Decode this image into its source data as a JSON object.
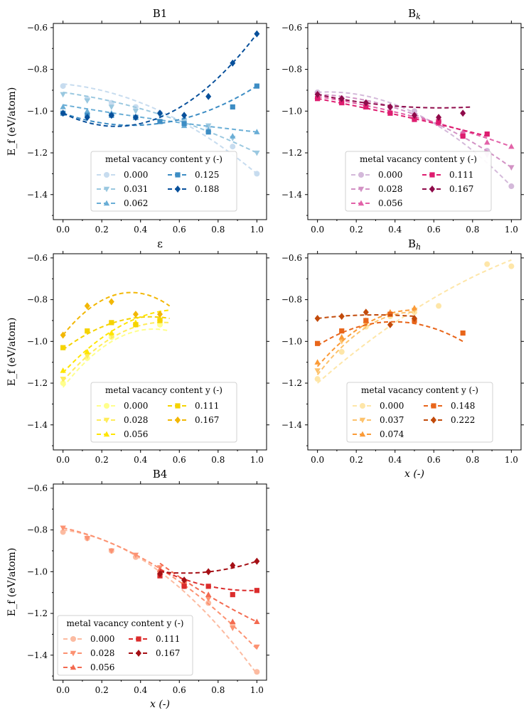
{
  "figure": {
    "ylabel": "E_f (eV/atom)",
    "xlabel": "x (-)",
    "legend_title": "metal vacancy content y (-)"
  },
  "chart_data": [
    {
      "id": "B1",
      "type": "scatter",
      "title": "B1",
      "title_base": "B",
      "title_sub": "",
      "title_plain": "B1",
      "xlim": [
        -0.05,
        1.05
      ],
      "ylim": [
        -1.52,
        -0.58
      ],
      "xticks": [
        0.0,
        0.2,
        0.4,
        0.6,
        0.8,
        1.0
      ],
      "yticks": [
        -0.6,
        -0.8,
        -1.0,
        -1.2,
        -1.4
      ],
      "xtick_labels": [
        "0.0",
        "0.2",
        "0.4",
        "0.6",
        "0.8",
        "1.0"
      ],
      "ytick_labels": [
        "−0.6",
        "−0.8",
        "−1.0",
        "−1.2",
        "−1.4"
      ],
      "show_ylabel": true,
      "show_xlabel": false,
      "legend": {
        "title": "metal vacancy content y (-)",
        "location": "lower-center"
      },
      "series": [
        {
          "name": "0.000",
          "color": "#c7dcef",
          "marker": "circle",
          "x": [
            0.0,
            0.125,
            0.25,
            0.375,
            0.5,
            0.625,
            0.75,
            0.875,
            1.0
          ],
          "y": [
            -0.88,
            -0.94,
            -0.96,
            -0.98,
            -1.01,
            -1.04,
            -1.08,
            -1.17,
            -1.3
          ],
          "fit": [
            -0.87,
            -1.3
          ]
        },
        {
          "name": "0.031",
          "color": "#9ac8e0",
          "marker": "triangle-down",
          "x": [
            0.0,
            0.125,
            0.25,
            0.375,
            0.5,
            0.625,
            0.75,
            0.875,
            1.0
          ],
          "y": [
            -0.92,
            -0.95,
            -0.98,
            -1.0,
            -1.02,
            -1.05,
            -1.07,
            -1.13,
            -1.2
          ],
          "fit": [
            -0.91,
            -1.2
          ]
        },
        {
          "name": "0.062",
          "color": "#6aaed6",
          "marker": "triangle-up",
          "x": [
            0.0,
            0.125,
            0.25,
            0.375,
            0.5,
            0.625,
            0.75,
            0.875,
            1.0
          ],
          "y": [
            -0.98,
            -1.0,
            -1.01,
            -1.03,
            -1.05,
            -1.07,
            -1.09,
            -1.12,
            -1.1
          ],
          "fit": [
            -0.97,
            -1.1
          ]
        },
        {
          "name": "0.125",
          "color": "#3d8dc4",
          "marker": "square",
          "x": [
            0.0,
            0.125,
            0.25,
            0.375,
            0.5,
            0.625,
            0.75,
            0.875,
            1.0
          ],
          "y": [
            -1.01,
            -1.02,
            -1.02,
            -1.03,
            -1.05,
            -1.06,
            -1.1,
            -0.98,
            -0.88
          ],
          "fit": [
            -1.01,
            -0.88
          ]
        },
        {
          "name": "0.188",
          "color": "#08509b",
          "marker": "diamond",
          "x": [
            0.0,
            0.125,
            0.25,
            0.375,
            0.5,
            0.625,
            0.75,
            0.875,
            1.0
          ],
          "y": [
            -1.01,
            -1.03,
            -1.02,
            -1.03,
            -1.01,
            -1.02,
            -0.93,
            -0.77,
            -0.63
          ],
          "fit": [
            -1.01,
            -0.63
          ]
        }
      ]
    },
    {
      "id": "Bk",
      "type": "scatter",
      "title": "B_k",
      "title_base": "B",
      "title_sub": "k",
      "title_plain": "",
      "xlim": [
        -0.05,
        1.05
      ],
      "ylim": [
        -1.52,
        -0.58
      ],
      "xticks": [
        0.0,
        0.2,
        0.4,
        0.6,
        0.8,
        1.0
      ],
      "yticks": [
        -0.6,
        -0.8,
        -1.0,
        -1.2,
        -1.4
      ],
      "xtick_labels": [
        "0.0",
        "0.2",
        "0.4",
        "0.6",
        "0.8",
        "1.0"
      ],
      "ytick_labels": [
        "−0.6",
        "−0.8",
        "−1.0",
        "−1.2",
        "−1.4"
      ],
      "show_ylabel": false,
      "show_xlabel": false,
      "legend": {
        "title": "metal vacancy content y (-)",
        "location": "lower-center"
      },
      "series": [
        {
          "name": "0.000",
          "color": "#d4b9da",
          "marker": "circle",
          "x": [
            0.0,
            0.125,
            0.25,
            0.375,
            0.5,
            0.625,
            0.75,
            0.875,
            1.0
          ],
          "y": [
            -0.91,
            -0.94,
            -0.96,
            -0.98,
            -1.0,
            -1.05,
            -1.12,
            -1.19,
            -1.36
          ],
          "fit": [
            -0.91,
            -1.36
          ]
        },
        {
          "name": "0.028",
          "color": "#d291c4",
          "marker": "triangle-down",
          "x": [
            0.0,
            0.125,
            0.25,
            0.375,
            0.5,
            0.625,
            0.75,
            0.875,
            1.0
          ],
          "y": [
            -0.92,
            -0.95,
            -0.97,
            -0.99,
            -1.02,
            -1.06,
            -1.11,
            -1.21,
            -1.27
          ],
          "fit": [
            -0.92,
            -1.27
          ]
        },
        {
          "name": "0.056",
          "color": "#e262a8",
          "marker": "triangle-up",
          "x": [
            0.0,
            0.125,
            0.25,
            0.375,
            0.5,
            0.625,
            0.75,
            0.875,
            1.0
          ],
          "y": [
            -0.93,
            -0.96,
            -0.98,
            -1.0,
            -1.03,
            -1.06,
            -1.1,
            -1.15,
            -1.17
          ],
          "fit": [
            -0.93,
            -1.17
          ]
        },
        {
          "name": "0.111",
          "color": "#de1c6f",
          "marker": "square",
          "x": [
            0.0,
            0.125,
            0.25,
            0.375,
            0.5,
            0.625,
            0.75,
            0.875
          ],
          "y": [
            -0.94,
            -0.96,
            -0.98,
            -1.01,
            -1.04,
            -1.05,
            -1.12,
            -1.11
          ],
          "fit": [
            -0.94,
            -1.12
          ]
        },
        {
          "name": "0.167",
          "color": "#8f0a4a",
          "marker": "diamond",
          "x": [
            0.0,
            0.125,
            0.25,
            0.375,
            0.5,
            0.625,
            0.75
          ],
          "y": [
            -0.92,
            -0.94,
            -0.96,
            -0.98,
            -1.02,
            -1.03,
            -1.01
          ],
          "fit": [
            -0.92,
            -0.98
          ]
        }
      ]
    },
    {
      "id": "eps",
      "type": "scatter",
      "title": "ε",
      "title_base": "ε",
      "title_sub": "",
      "title_plain": "ε",
      "xlim": [
        -0.05,
        1.05
      ],
      "ylim": [
        -1.52,
        -0.58
      ],
      "xticks": [
        0.0,
        0.2,
        0.4,
        0.6,
        0.8,
        1.0
      ],
      "yticks": [
        -0.6,
        -0.8,
        -1.0,
        -1.2,
        -1.4
      ],
      "xtick_labels": [
        "0.0",
        "0.2",
        "0.4",
        "0.6",
        "0.8",
        "1.0"
      ],
      "ytick_labels": [
        "−0.6",
        "−0.8",
        "−1.0",
        "−1.2",
        "−1.4"
      ],
      "show_ylabel": true,
      "show_xlabel": false,
      "legend": {
        "title": "metal vacancy content y (-)",
        "location": "lower-center"
      },
      "series": [
        {
          "name": "0.000",
          "color": "#ffff8c",
          "marker": "circle",
          "x": [
            0.0,
            0.125,
            0.25,
            0.375,
            0.5
          ],
          "y": [
            -1.2,
            -1.08,
            -0.98,
            -0.92,
            -0.92
          ],
          "fit": [
            -1.22,
            -0.95
          ]
        },
        {
          "name": "0.028",
          "color": "#ffec5a",
          "marker": "triangle-down",
          "x": [
            0.0,
            0.125,
            0.25,
            0.375,
            0.5
          ],
          "y": [
            -1.18,
            -1.07,
            -0.97,
            -0.92,
            -0.9
          ],
          "fit": [
            -1.19,
            -0.91
          ]
        },
        {
          "name": "0.056",
          "color": "#ffe500",
          "marker": "triangle-up",
          "x": [
            0.0,
            0.125,
            0.25,
            0.375,
            0.5
          ],
          "y": [
            -1.14,
            -1.05,
            -0.96,
            -0.91,
            -0.89
          ],
          "fit": [
            -1.15,
            -0.85
          ]
        },
        {
          "name": "0.111",
          "color": "#f5d300",
          "marker": "square",
          "x": [
            0.0,
            0.125,
            0.25,
            0.375,
            0.5
          ],
          "y": [
            -1.03,
            -0.95,
            -0.91,
            -0.92,
            -0.9
          ],
          "fit": [
            -1.04,
            -0.89
          ]
        },
        {
          "name": "0.167",
          "color": "#f2b705",
          "marker": "diamond",
          "x": [
            0.0,
            0.125,
            0.25,
            0.375,
            0.5
          ],
          "y": [
            -0.97,
            -0.83,
            -0.81,
            -0.87,
            -0.87
          ],
          "fit": [
            -0.97,
            -0.83
          ]
        }
      ]
    },
    {
      "id": "Bh",
      "type": "scatter",
      "title": "B_h",
      "title_base": "B",
      "title_sub": "h",
      "title_plain": "",
      "xlim": [
        -0.05,
        1.05
      ],
      "ylim": [
        -1.52,
        -0.58
      ],
      "xticks": [
        0.0,
        0.2,
        0.4,
        0.6,
        0.8,
        1.0
      ],
      "yticks": [
        -0.6,
        -0.8,
        -1.0,
        -1.2,
        -1.4
      ],
      "xtick_labels": [
        "0.0",
        "0.2",
        "0.4",
        "0.6",
        "0.8",
        "1.0"
      ],
      "ytick_labels": [
        "−0.6",
        "−0.8",
        "−1.0",
        "−1.2",
        "−1.4"
      ],
      "show_ylabel": false,
      "show_xlabel": true,
      "legend": {
        "title": "metal vacancy content y (-)",
        "location": "lower-center"
      },
      "series": [
        {
          "name": "0.000",
          "color": "#fee6a8",
          "marker": "circle",
          "x": [
            0.0,
            0.125,
            0.25,
            0.375,
            0.5,
            0.625,
            0.875,
            1.0
          ],
          "y": [
            -1.18,
            -1.05,
            -0.93,
            -0.88,
            -0.86,
            -0.83,
            -0.63,
            -0.64
          ],
          "fit": [
            -1.2,
            -0.61
          ]
        },
        {
          "name": "0.037",
          "color": "#fdc26c",
          "marker": "triangle-down",
          "x": [
            0.0,
            0.125,
            0.25,
            0.375,
            0.5
          ],
          "y": [
            -1.14,
            -1.0,
            -0.92,
            -0.87,
            -0.85
          ],
          "fit": [
            -1.16,
            -0.86
          ]
        },
        {
          "name": "0.074",
          "color": "#fb9b38",
          "marker": "triangle-up",
          "x": [
            0.0,
            0.125,
            0.25,
            0.375,
            0.5
          ],
          "y": [
            -1.1,
            -0.98,
            -0.9,
            -0.86,
            -0.84
          ],
          "fit": [
            -1.12,
            -0.85
          ]
        },
        {
          "name": "0.148",
          "color": "#e8651a",
          "marker": "square",
          "x": [
            0.0,
            0.125,
            0.25,
            0.375,
            0.5,
            0.75
          ],
          "y": [
            -1.01,
            -0.95,
            -0.9,
            -0.87,
            -0.9,
            -0.96
          ],
          "fit": [
            -1.02,
            -1.0
          ]
        },
        {
          "name": "0.222",
          "color": "#c24a0a",
          "marker": "diamond",
          "x": [
            0.0,
            0.125,
            0.25,
            0.375,
            0.5
          ],
          "y": [
            -0.89,
            -0.88,
            -0.86,
            -0.92,
            -0.89
          ],
          "fit": [
            -0.89,
            -0.88
          ]
        }
      ]
    },
    {
      "id": "B4",
      "type": "scatter",
      "title": "B4",
      "title_base": "B",
      "title_sub": "",
      "title_plain": "B4",
      "xlim": [
        -0.05,
        1.05
      ],
      "ylim": [
        -1.52,
        -0.58
      ],
      "xticks": [
        0.0,
        0.2,
        0.4,
        0.6,
        0.8,
        1.0
      ],
      "yticks": [
        -0.6,
        -0.8,
        -1.0,
        -1.2,
        -1.4
      ],
      "xtick_labels": [
        "0.0",
        "0.2",
        "0.4",
        "0.6",
        "0.8",
        "1.0"
      ],
      "ytick_labels": [
        "−0.6",
        "−0.8",
        "−1.0",
        "−1.2",
        "−1.4"
      ],
      "show_ylabel": true,
      "show_xlabel": true,
      "legend": {
        "title": "metal vacancy content y (-)",
        "location": "lower-left"
      },
      "series": [
        {
          "name": "0.000",
          "color": "#fcbba1",
          "marker": "circle",
          "x": [
            0.0,
            0.125,
            0.25,
            0.375,
            0.5,
            0.625,
            0.75,
            0.875,
            1.0
          ],
          "y": [
            -0.81,
            -0.84,
            -0.9,
            -0.93,
            -1.0,
            -1.07,
            -1.15,
            -1.25,
            -1.48
          ],
          "fit": [
            -0.8,
            -1.49
          ]
        },
        {
          "name": "0.028",
          "color": "#fc9272",
          "marker": "triangle-down",
          "x": [
            0.0,
            0.125,
            0.25,
            0.375,
            0.5,
            0.625,
            0.75,
            0.875,
            1.0
          ],
          "y": [
            -0.79,
            -0.84,
            -0.9,
            -0.92,
            -0.98,
            -1.06,
            -1.13,
            -1.27,
            -1.36
          ],
          "fit": [
            -0.79,
            -1.37
          ]
        },
        {
          "name": "0.056",
          "color": "#f36a50",
          "marker": "triangle-up",
          "x": [
            0.5,
            0.625,
            0.75,
            0.875,
            1.0
          ],
          "y": [
            -0.99,
            -1.05,
            -1.11,
            -1.24,
            -1.24
          ],
          "fit": [
            -0.96,
            -1.24
          ]
        },
        {
          "name": "0.111",
          "color": "#db2c2c",
          "marker": "square",
          "x": [
            0.5,
            0.625,
            0.75,
            0.875,
            1.0
          ],
          "y": [
            -1.02,
            -1.07,
            -1.07,
            -1.11,
            -1.09
          ],
          "fit": [
            -0.99,
            -1.09
          ]
        },
        {
          "name": "0.167",
          "color": "#a50f15",
          "marker": "diamond",
          "x": [
            0.5,
            0.625,
            0.75,
            0.875,
            1.0
          ],
          "y": [
            -1.01,
            -1.04,
            -1.0,
            -0.97,
            -0.95
          ],
          "fit": [
            -1.0,
            -0.95
          ]
        }
      ]
    }
  ]
}
